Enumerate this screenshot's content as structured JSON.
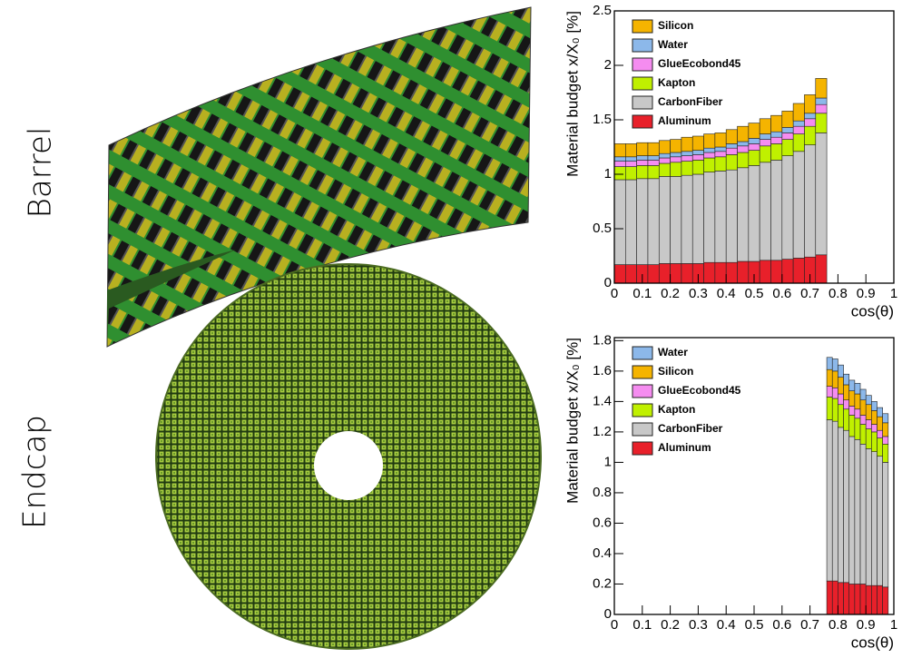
{
  "labels": [
    "Barrel",
    "Endcap"
  ],
  "chart_data": [
    {
      "type": "histogram",
      "xlabel": "cos(θ)",
      "ylabel": "Material budget x/X₀ [%]",
      "xlim": [
        0,
        1
      ],
      "ylim": [
        0,
        2.5
      ],
      "xticks": [
        0,
        0.1,
        0.2,
        0.3,
        0.4,
        0.5,
        0.6,
        0.7,
        0.8,
        0.9,
        1
      ],
      "yticks": [
        0,
        0.5,
        1,
        1.5,
        2,
        2.5
      ],
      "stacked": true,
      "legend": "upper left",
      "bins": [
        0,
        0.04,
        0.08,
        0.12,
        0.16,
        0.2,
        0.24,
        0.28,
        0.32,
        0.36,
        0.4,
        0.44,
        0.48,
        0.52,
        0.56,
        0.6,
        0.64,
        0.68,
        0.72,
        0.76
      ],
      "series": [
        {
          "name": "Silicon",
          "color": "#f5b400",
          "values": [
            0.12,
            0.12,
            0.12,
            0.12,
            0.12,
            0.12,
            0.13,
            0.13,
            0.13,
            0.13,
            0.13,
            0.14,
            0.14,
            0.14,
            0.15,
            0.15,
            0.16,
            0.17,
            0.18
          ]
        },
        {
          "name": "Water",
          "color": "#8cb8ea",
          "values": [
            0.04,
            0.04,
            0.04,
            0.04,
            0.04,
            0.04,
            0.04,
            0.04,
            0.04,
            0.04,
            0.04,
            0.04,
            0.05,
            0.05,
            0.05,
            0.05,
            0.05,
            0.05,
            0.06
          ]
        },
        {
          "name": "GlueEcobond45",
          "color": "#f58cf0",
          "values": [
            0.05,
            0.05,
            0.05,
            0.05,
            0.05,
            0.05,
            0.05,
            0.05,
            0.05,
            0.05,
            0.06,
            0.06,
            0.06,
            0.06,
            0.06,
            0.06,
            0.07,
            0.07,
            0.08
          ]
        },
        {
          "name": "Kapton",
          "color": "#c0f000",
          "values": [
            0.12,
            0.12,
            0.12,
            0.12,
            0.12,
            0.13,
            0.13,
            0.13,
            0.13,
            0.13,
            0.14,
            0.14,
            0.14,
            0.15,
            0.15,
            0.15,
            0.16,
            0.17,
            0.18
          ]
        },
        {
          "name": "CarbonFiber",
          "color": "#c8c8c8",
          "values": [
            0.78,
            0.78,
            0.79,
            0.79,
            0.8,
            0.8,
            0.81,
            0.82,
            0.83,
            0.84,
            0.85,
            0.86,
            0.88,
            0.9,
            0.92,
            0.95,
            0.98,
            1.03,
            1.12
          ]
        },
        {
          "name": "Aluminum",
          "color": "#e8202a",
          "values": [
            0.17,
            0.17,
            0.17,
            0.17,
            0.18,
            0.18,
            0.18,
            0.18,
            0.19,
            0.19,
            0.19,
            0.2,
            0.2,
            0.21,
            0.21,
            0.22,
            0.23,
            0.24,
            0.26
          ]
        }
      ]
    },
    {
      "type": "histogram",
      "xlabel": "cos(θ)",
      "ylabel": "Material budget x/X₀ [%]",
      "xlim": [
        0,
        1
      ],
      "ylim": [
        0,
        1.82
      ],
      "xticks": [
        0,
        0.1,
        0.2,
        0.3,
        0.4,
        0.5,
        0.6,
        0.7,
        0.8,
        0.9,
        1
      ],
      "yticks": [
        0,
        0.2,
        0.4,
        0.6,
        0.8,
        1,
        1.2,
        1.4,
        1.6,
        1.8
      ],
      "stacked": true,
      "legend": "upper left",
      "bins": [
        0.76,
        0.78,
        0.8,
        0.82,
        0.84,
        0.86,
        0.88,
        0.9,
        0.92,
        0.94,
        0.96,
        0.98
      ],
      "series": [
        {
          "name": "Water",
          "color": "#8cb8ea",
          "values": [
            0.08,
            0.08,
            0.08,
            0.07,
            0.07,
            0.07,
            0.07,
            0.06,
            0.06,
            0.06,
            0.06
          ]
        },
        {
          "name": "Silicon",
          "color": "#f5b400",
          "values": [
            0.11,
            0.11,
            0.11,
            0.1,
            0.1,
            0.1,
            0.1,
            0.1,
            0.09,
            0.09,
            0.09
          ]
        },
        {
          "name": "GlueEcobond45",
          "color": "#f58cf0",
          "values": [
            0.07,
            0.07,
            0.07,
            0.06,
            0.06,
            0.06,
            0.06,
            0.06,
            0.05,
            0.05,
            0.05
          ]
        },
        {
          "name": "Kapton",
          "color": "#c0f000",
          "values": [
            0.15,
            0.15,
            0.15,
            0.14,
            0.14,
            0.14,
            0.13,
            0.13,
            0.13,
            0.12,
            0.12
          ]
        },
        {
          "name": "CarbonFiber",
          "color": "#c8c8c8",
          "values": [
            1.06,
            1.05,
            1.02,
            1.0,
            0.97,
            0.95,
            0.92,
            0.9,
            0.88,
            0.85,
            0.82
          ]
        },
        {
          "name": "Aluminum",
          "color": "#e8202a",
          "values": [
            0.22,
            0.22,
            0.21,
            0.21,
            0.2,
            0.2,
            0.2,
            0.19,
            0.19,
            0.19,
            0.18
          ]
        }
      ]
    }
  ]
}
